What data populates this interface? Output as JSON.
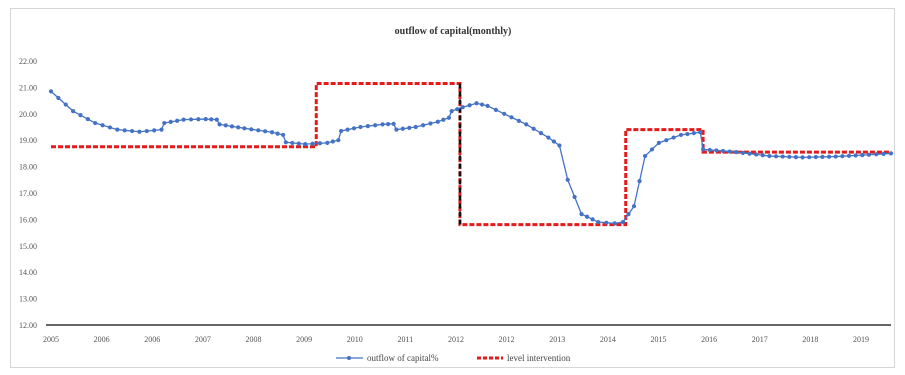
{
  "chart_data": {
    "type": "line",
    "title": "outflow of capital(monthly)",
    "xlabel": "",
    "ylabel": "",
    "ylim": [
      22.0,
      22.8
    ],
    "y_ticks": [
      "22.00",
      "21.00",
      "20.00",
      "19.00",
      "18.00",
      "17.00",
      "16.00",
      "15.00",
      "14.00",
      "13.00",
      "12.00"
    ],
    "x_tick_labels": [
      "2005",
      "2006",
      "2006",
      "2007",
      "2008",
      "2009",
      "2010",
      "2011",
      "2012",
      "2012",
      "2013",
      "2014",
      "2015",
      "2016",
      "2017",
      "2018",
      "2019"
    ],
    "grid": false,
    "legend_position": "bottom",
    "series": [
      {
        "name": "outflow of capital%",
        "color": "#4472c4",
        "style": "line-markers",
        "points": [
          [
            0.0,
            20.85
          ],
          [
            0.4,
            20.1
          ],
          [
            0.8,
            19.65
          ],
          [
            1.2,
            19.4
          ],
          [
            1.6,
            19.32
          ],
          [
            2.0,
            19.4
          ],
          [
            2.05,
            19.65
          ],
          [
            2.4,
            19.78
          ],
          [
            2.8,
            19.8
          ],
          [
            3.0,
            19.78
          ],
          [
            3.05,
            19.6
          ],
          [
            3.5,
            19.45
          ],
          [
            4.0,
            19.3
          ],
          [
            4.2,
            19.2
          ],
          [
            4.25,
            18.92
          ],
          [
            4.6,
            18.85
          ],
          [
            5.0,
            18.9
          ],
          [
            5.2,
            19.0
          ],
          [
            5.25,
            19.35
          ],
          [
            5.6,
            19.5
          ],
          [
            6.0,
            19.6
          ],
          [
            6.2,
            19.62
          ],
          [
            6.25,
            19.4
          ],
          [
            6.6,
            19.5
          ],
          [
            7.0,
            19.7
          ],
          [
            7.2,
            19.85
          ],
          [
            7.25,
            20.1
          ],
          [
            7.45,
            20.25
          ],
          [
            7.7,
            20.4
          ],
          [
            7.9,
            20.3
          ],
          [
            8.2,
            20.0
          ],
          [
            8.6,
            19.6
          ],
          [
            9.0,
            19.1
          ],
          [
            9.2,
            18.8
          ],
          [
            9.35,
            17.5
          ],
          [
            9.6,
            16.2
          ],
          [
            9.9,
            15.9
          ],
          [
            10.2,
            15.85
          ],
          [
            10.35,
            15.9
          ],
          [
            10.55,
            16.5
          ],
          [
            10.75,
            18.4
          ],
          [
            11.0,
            18.9
          ],
          [
            11.4,
            19.2
          ],
          [
            11.75,
            19.3
          ],
          [
            11.8,
            18.65
          ],
          [
            12.4,
            18.55
          ],
          [
            13.0,
            18.4
          ],
          [
            13.6,
            18.35
          ],
          [
            14.2,
            18.38
          ],
          [
            14.8,
            18.45
          ],
          [
            15.2,
            18.5
          ]
        ]
      },
      {
        "name": "level intervention",
        "color": "#e31b1b",
        "style": "dashed-step",
        "points": [
          [
            0.0,
            18.75
          ],
          [
            4.8,
            18.75
          ],
          [
            4.8,
            21.15
          ],
          [
            7.4,
            21.15
          ],
          [
            7.4,
            15.8
          ],
          [
            10.4,
            15.8
          ],
          [
            10.4,
            19.4
          ],
          [
            11.8,
            19.4
          ],
          [
            11.8,
            18.55
          ],
          [
            15.2,
            18.55
          ]
        ]
      }
    ],
    "connectors": [
      {
        "color": "#111111",
        "from": [
          7.4,
          21.15
        ],
        "to": [
          7.4,
          15.8
        ]
      }
    ],
    "legend": [
      {
        "label": "outflow of capital%",
        "swatch": "line-markers",
        "color": "#4472c4"
      },
      {
        "label": "level intervention",
        "swatch": "dashed",
        "color": "#e31b1b"
      }
    ]
  }
}
